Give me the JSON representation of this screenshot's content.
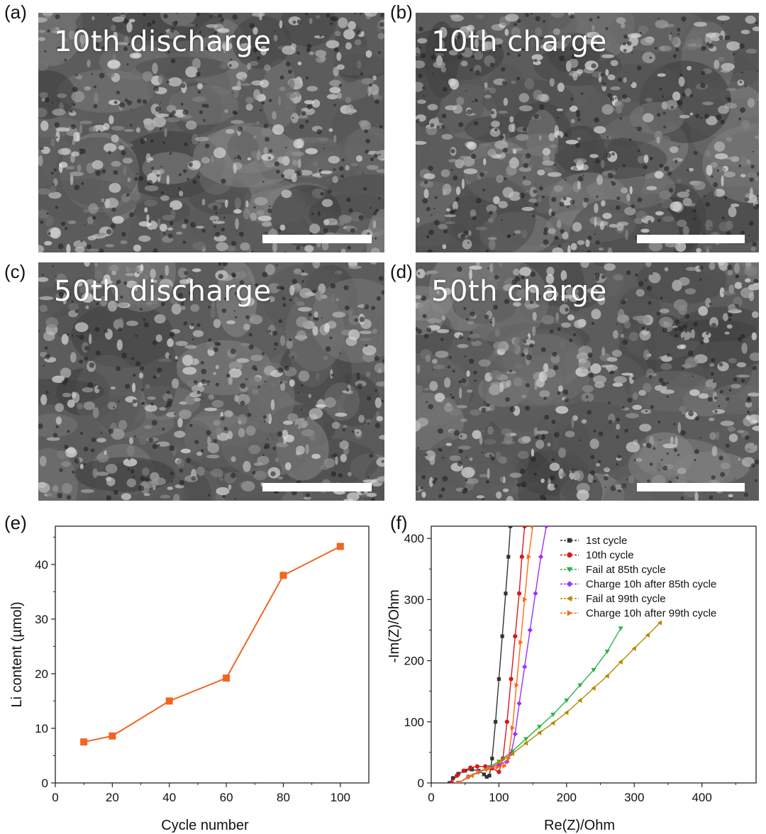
{
  "panels": {
    "a": {
      "letter": "(a)",
      "title": "10th discharge"
    },
    "b": {
      "letter": "(b)",
      "title": "10th charge"
    },
    "c": {
      "letter": "(c)",
      "title": "50th discharge"
    },
    "d": {
      "letter": "(d)",
      "title": "50th charge"
    },
    "e": {
      "letter": "(e)"
    },
    "f": {
      "letter": "(f)"
    }
  },
  "colors": {
    "sem_base": "#5c5c5c",
    "e_series": "#f26522"
  },
  "chart_data": [
    {
      "type": "line",
      "xlabel": "Cycle number",
      "ylabel": "Li content (µmol)",
      "xlim": [
        0,
        110
      ],
      "ylim": [
        0,
        47
      ],
      "xticks": [
        "0",
        "20",
        "40",
        "60",
        "80",
        "100"
      ],
      "yticks": [
        "0",
        "10",
        "20",
        "30",
        "40"
      ],
      "grid": false,
      "series": [
        {
          "x": [
            10,
            20,
            40,
            60,
            80,
            100
          ],
          "values": [
            7.5,
            8.6,
            15.0,
            19.2,
            38.0,
            43.3
          ],
          "color": "#f26522",
          "marker": "square"
        }
      ]
    },
    {
      "type": "line",
      "xlabel": "Re(Z)/Ohm",
      "ylabel": "-Im(Z)/Ohm",
      "xlim": [
        0,
        480
      ],
      "ylim": [
        0,
        420
      ],
      "xticks": [
        "0",
        "100",
        "200",
        "300",
        "400"
      ],
      "yticks": [
        "0",
        "100",
        "200",
        "300",
        "400"
      ],
      "grid": false,
      "legend_position": "top-right",
      "series": [
        {
          "name": "1st cycle",
          "color": "#333333",
          "marker": "square",
          "x": [
            27,
            32,
            40,
            50,
            60,
            70,
            78,
            82,
            86,
            90,
            95,
            100,
            105,
            110,
            114,
            117
          ],
          "values": [
            0,
            8,
            15,
            20,
            22,
            20,
            14,
            10,
            12,
            40,
            100,
            170,
            240,
            310,
            370,
            420
          ]
        },
        {
          "name": "10th cycle",
          "color": "#d7191c",
          "marker": "circle",
          "x": [
            30,
            38,
            48,
            58,
            68,
            80,
            90,
            100,
            106,
            112,
            118,
            124,
            130,
            134,
            138
          ],
          "values": [
            0,
            12,
            20,
            25,
            27,
            27,
            24,
            18,
            40,
            100,
            170,
            240,
            310,
            370,
            420
          ]
        },
        {
          "name": "Fail at 85th cycle",
          "color": "#2db34a",
          "marker": "triangle-down",
          "x": [
            40,
            55,
            70,
            85,
            100,
            120,
            140,
            160,
            180,
            200,
            220,
            240,
            260,
            280
          ],
          "values": [
            0,
            10,
            18,
            26,
            35,
            52,
            72,
            92,
            112,
            135,
            160,
            185,
            215,
            253
          ]
        },
        {
          "name": "Charge 10h after 85th cycle",
          "color": "#9b30ff",
          "marker": "diamond",
          "x": [
            40,
            55,
            70,
            85,
            100,
            112,
            118,
            124,
            130,
            138,
            146,
            154,
            162,
            170
          ],
          "values": [
            0,
            10,
            18,
            25,
            30,
            35,
            48,
            80,
            130,
            190,
            250,
            310,
            370,
            420
          ]
        },
        {
          "name": "Fail at 99th cycle",
          "color": "#b58900",
          "marker": "triangle-left",
          "x": [
            40,
            60,
            80,
            100,
            120,
            140,
            160,
            180,
            200,
            220,
            240,
            260,
            280,
            300,
            320,
            338
          ],
          "values": [
            0,
            12,
            22,
            34,
            48,
            65,
            82,
            98,
            115,
            135,
            155,
            175,
            198,
            220,
            242,
            262
          ]
        },
        {
          "name": "Charge 10h after 99th cycle",
          "color": "#ff6a13",
          "marker": "triangle-right",
          "x": [
            40,
            55,
            70,
            85,
            98,
            108,
            114,
            120,
            126,
            132,
            138,
            144,
            150
          ],
          "values": [
            0,
            10,
            18,
            24,
            26,
            28,
            40,
            90,
            160,
            230,
            300,
            370,
            420
          ]
        }
      ]
    }
  ]
}
